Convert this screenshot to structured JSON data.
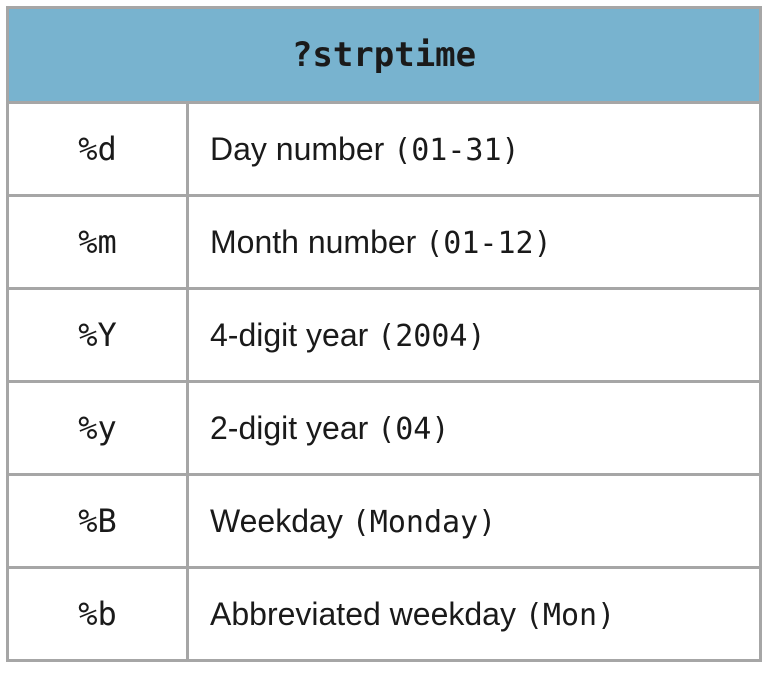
{
  "table": {
    "title": "?strptime",
    "rows": [
      {
        "code": "%d",
        "desc": "Day number",
        "example": "(01-31)"
      },
      {
        "code": "%m",
        "desc": "Month number",
        "example": "(01-12)"
      },
      {
        "code": "%Y",
        "desc": "4-digit year",
        "example": "(2004)"
      },
      {
        "code": "%y",
        "desc": "2-digit year",
        "example": "(04)"
      },
      {
        "code": "%B",
        "desc": "Weekday",
        "example": "(Monday)"
      },
      {
        "code": "%b",
        "desc": "Abbreviated weekday",
        "example": "(Mon)"
      }
    ]
  },
  "colors": {
    "header_background": "#78b3cf",
    "border": "#a6a6a6",
    "text": "#1a1a1a"
  }
}
